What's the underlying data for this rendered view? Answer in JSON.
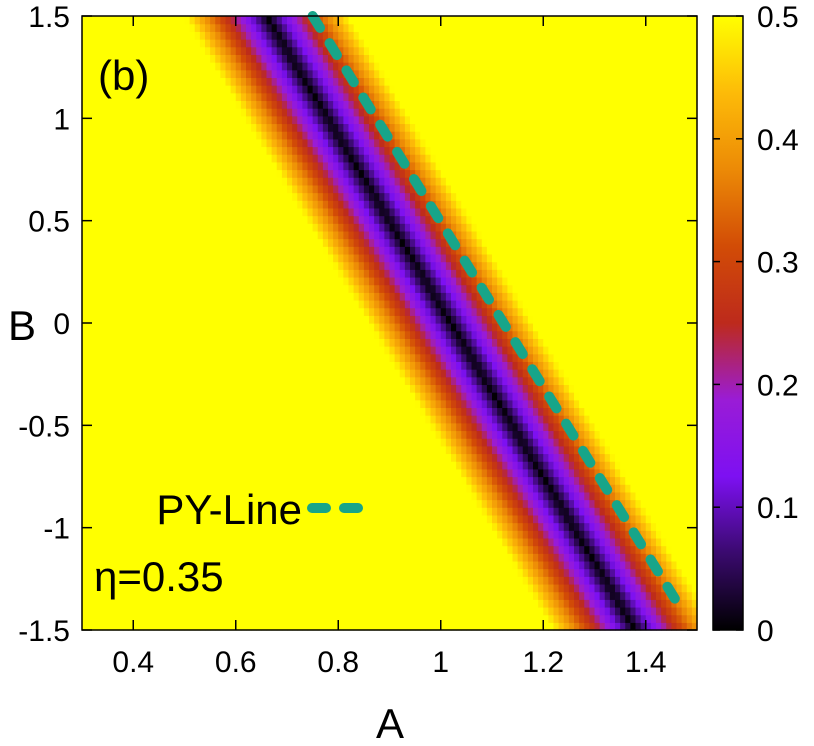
{
  "chart_data": {
    "type": "heatmap",
    "panel_label": "(b)",
    "xlabel": "A",
    "ylabel": "B",
    "xlim": [
      0.3,
      1.5
    ],
    "ylim": [
      -1.5,
      1.5
    ],
    "x_ticks": [
      "0.4",
      "0.6",
      "0.8",
      "1",
      "1.2",
      "1.4"
    ],
    "y_ticks": [
      "-1.5",
      "-1",
      "-0.5",
      "0",
      "0.5",
      "1",
      "1.5"
    ],
    "colorbar": {
      "range": [
        0,
        0.5
      ],
      "ticks": [
        "0",
        "0.1",
        "0.2",
        "0.3",
        "0.4",
        "0.5"
      ],
      "colormap": [
        "#000000",
        "#3a0a6e",
        "#7d10f2",
        "#9a1cd6",
        "#bd2a1c",
        "#d24c06",
        "#ec8a06",
        "#fdbb08",
        "#ffff00"
      ]
    },
    "heatmap_description": {
      "min_line_points": [
        [
          0.66,
          1.5
        ],
        [
          1.38,
          -1.5
        ]
      ],
      "band_halfwidth_A": 0.16,
      "background_value": 0.5
    },
    "series": [
      {
        "name": "PY-Line",
        "style": "dashed",
        "color": "#17a589",
        "x": [
          0.75,
          1.47
        ],
        "y": [
          1.5,
          -1.4
        ]
      }
    ],
    "annotations": [
      "η=0.35"
    ],
    "legend_position": "bottom-left"
  }
}
